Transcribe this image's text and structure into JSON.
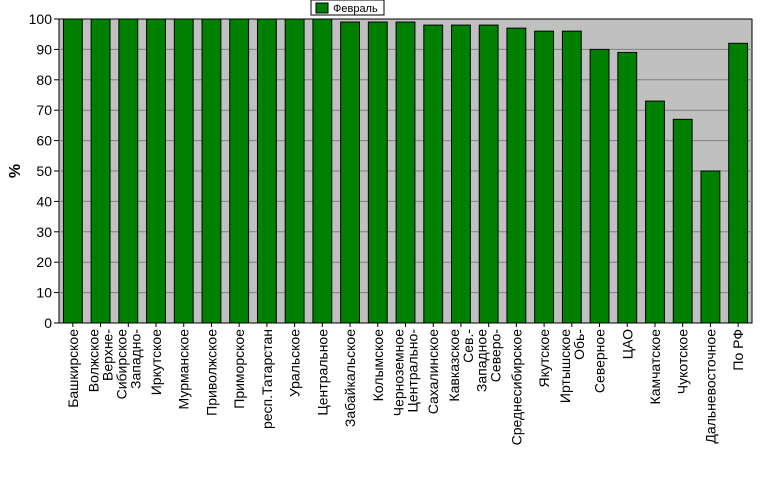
{
  "chart_data": {
    "type": "bar",
    "title": "",
    "xlabel": "",
    "ylabel": "%",
    "ylim": [
      0,
      100
    ],
    "yticks": [
      0,
      10,
      20,
      30,
      40,
      50,
      60,
      70,
      80,
      90,
      100
    ],
    "grid": true,
    "legend_position": "top-center",
    "colors": {
      "bar": "#008000",
      "plot_background": "#c0c0c0",
      "gridline": "#808080"
    },
    "categories": [
      "Башкирское",
      "Верхне-Волжское",
      "Западно-Сибирское",
      "Иркутское",
      "Мурманское",
      "Приволжское",
      "Приморское",
      "респ.Татарстан",
      "Уральское",
      "Центральное",
      "Забайкальское",
      "Колымское",
      "Центрально-Черноземное",
      "Сахалинское",
      "Сев.-Кавказское",
      "Северо-Западное",
      "Среднесибирское",
      "Якутское",
      "Обь-Иртышское",
      "Северное",
      "ЦАО",
      "Камчатское",
      "Чукотское",
      "Дальневосточное",
      "По РФ"
    ],
    "series": [
      {
        "name": "Февраль",
        "values": [
          100,
          100,
          100,
          100,
          100,
          100,
          100,
          100,
          100,
          100,
          99,
          99,
          99,
          98,
          98,
          98,
          97,
          96,
          96,
          90,
          89,
          73,
          67,
          50,
          92
        ]
      }
    ]
  }
}
